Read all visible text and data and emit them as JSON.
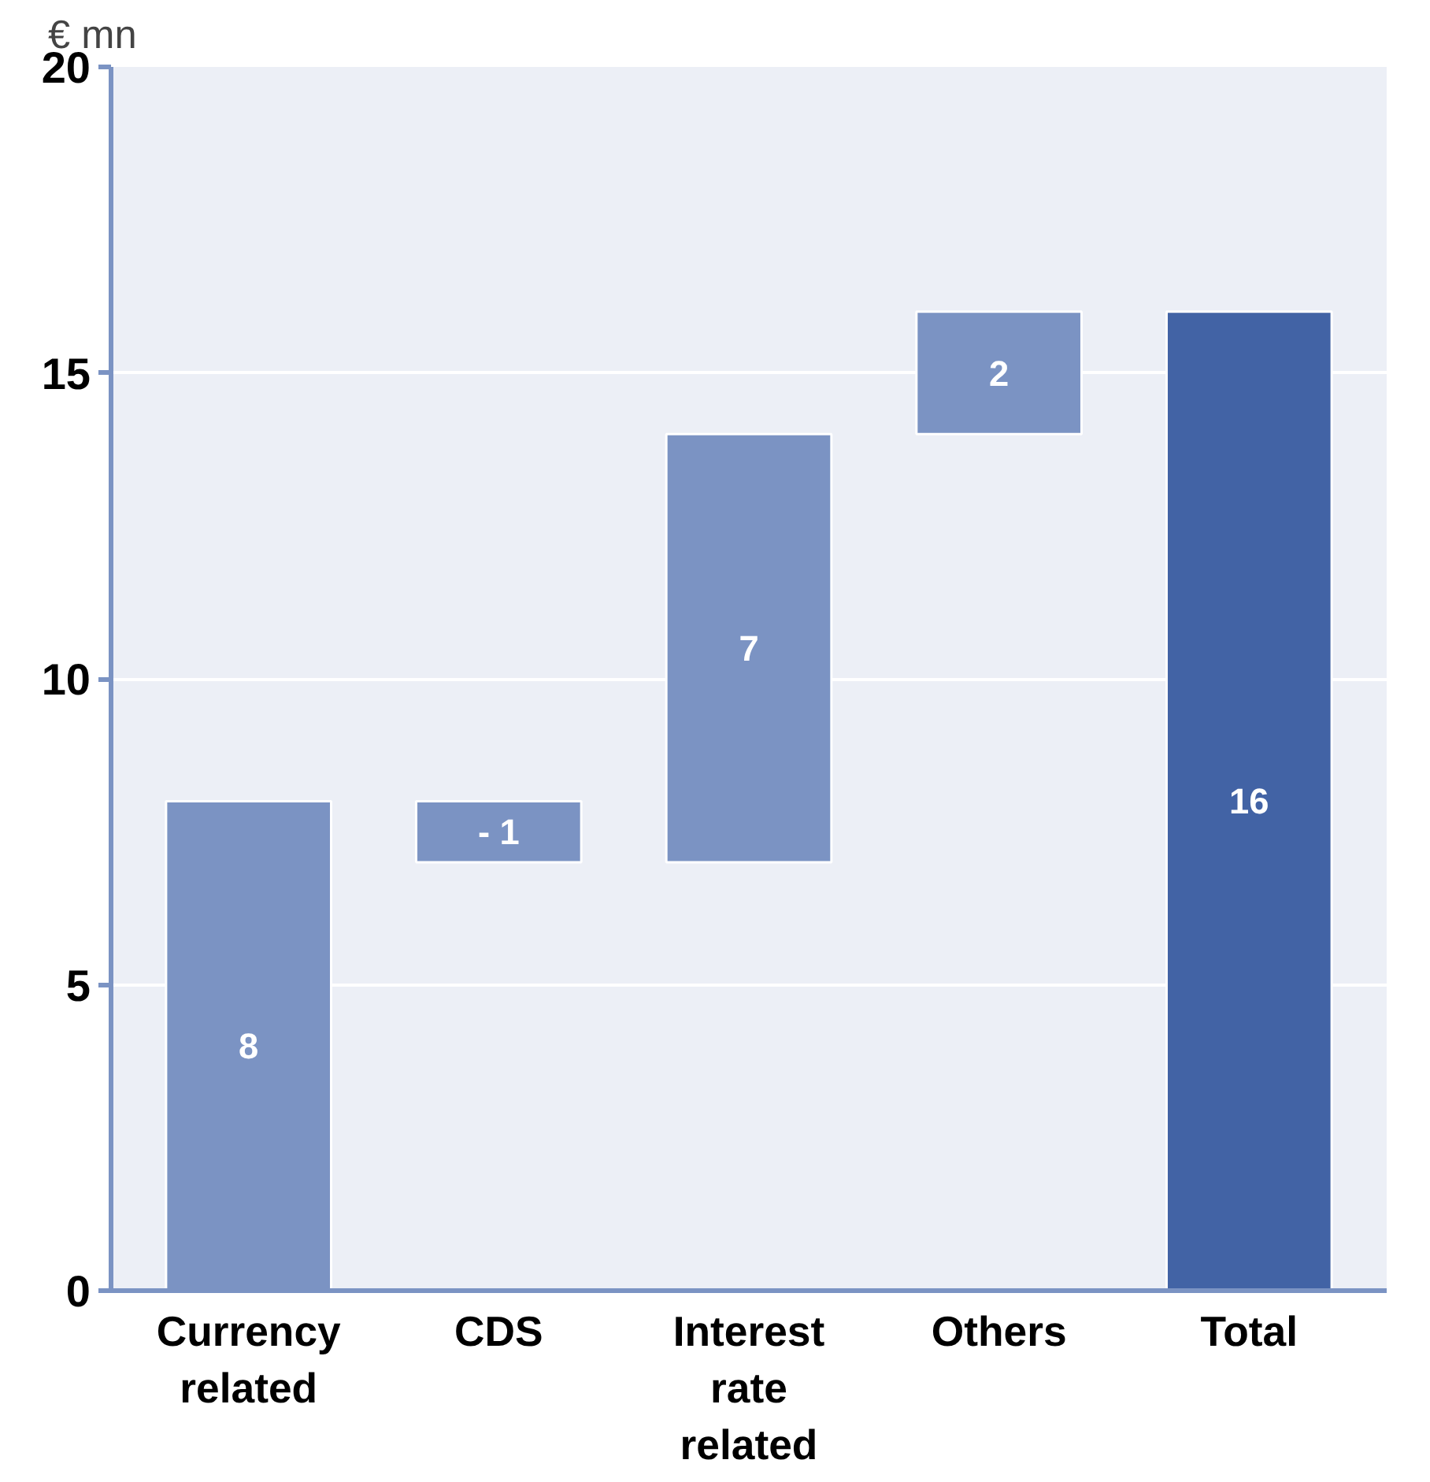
{
  "chart_data": {
    "type": "bar",
    "ylabel": "€ mn",
    "categories": [
      "Currency related",
      "CDS",
      "Interest rate related",
      "Others",
      "Total"
    ],
    "values": [
      8,
      -1,
      7,
      2,
      16
    ],
    "base": [
      0,
      8,
      7,
      14,
      0
    ],
    "colors": [
      "#7b93c3",
      "#7b93c3",
      "#7b93c3",
      "#7b93c3",
      "#4263a5"
    ],
    "value_labels": [
      "8",
      "- 1",
      "7",
      "2",
      "16"
    ],
    "ylim": [
      0,
      20
    ],
    "yticks": [
      0,
      5,
      10,
      15,
      20
    ],
    "grid": "y"
  }
}
